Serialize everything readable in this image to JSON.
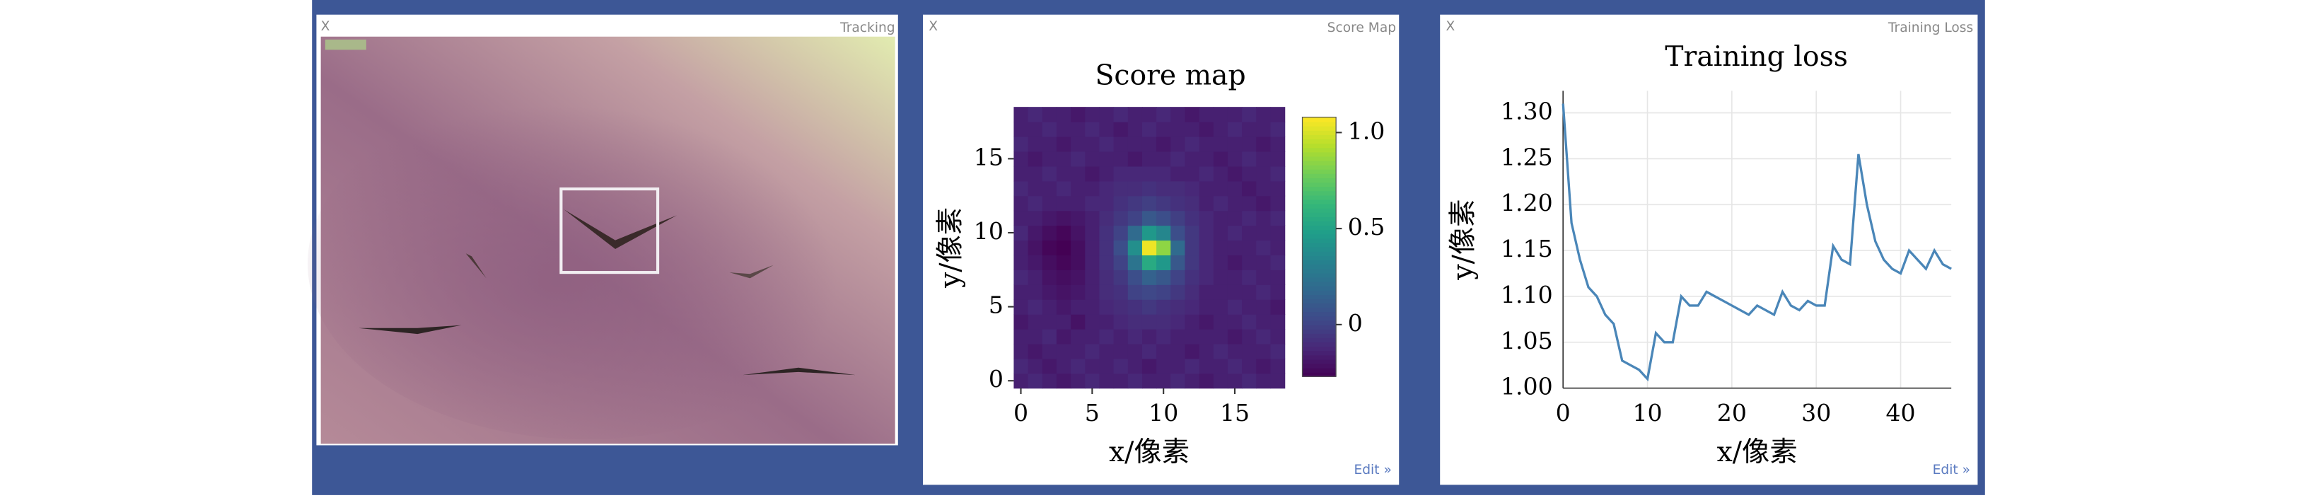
{
  "panels": [
    {
      "title": "Tracking",
      "close": "X"
    },
    {
      "title": "Score Map",
      "close": "X",
      "edit": "Edit »"
    },
    {
      "title": "Training Loss",
      "close": "X",
      "edit": "Edit »"
    }
  ],
  "chart_data": [
    {
      "type": "heatmap",
      "title": "Score map",
      "xlabel": "x/像素",
      "ylabel": "y/像素",
      "x": [
        0,
        1,
        2,
        3,
        4,
        5,
        6,
        7,
        8,
        9,
        10,
        11,
        12,
        13,
        14,
        15,
        16,
        17,
        18
      ],
      "y": [
        0,
        1,
        2,
        3,
        4,
        5,
        6,
        7,
        8,
        9,
        10,
        11,
        12,
        13,
        14,
        15,
        16,
        17,
        18
      ],
      "xlim": [
        -0.5,
        18.5
      ],
      "ylim": [
        -0.5,
        18.5
      ],
      "xticks": [
        0,
        5,
        10,
        15
      ],
      "yticks": [
        0,
        5,
        10,
        15
      ],
      "colormap": "viridis",
      "clim": [
        -0.27,
        1.08
      ],
      "cticks": [
        0,
        0.5,
        {
          "value": 1,
          "label": "1.0"
        }
      ],
      "z": [
        [
          -0.15,
          -0.12,
          -0.15,
          -0.18,
          -0.15,
          -0.12,
          -0.15,
          -0.15,
          -0.12,
          -0.15,
          -0.15,
          -0.12,
          -0.15,
          -0.18,
          -0.15,
          -0.15,
          -0.12,
          -0.15,
          -0.15
        ],
        [
          -0.12,
          -0.15,
          -0.18,
          -0.15,
          -0.12,
          -0.15,
          -0.15,
          -0.12,
          -0.15,
          -0.18,
          -0.15,
          -0.15,
          -0.12,
          -0.15,
          -0.15,
          -0.12,
          -0.15,
          -0.18,
          -0.15
        ],
        [
          -0.15,
          -0.18,
          -0.15,
          -0.15,
          -0.15,
          -0.12,
          -0.15,
          -0.15,
          -0.15,
          -0.12,
          -0.15,
          -0.15,
          -0.18,
          -0.15,
          -0.12,
          -0.15,
          -0.15,
          -0.15,
          -0.12
        ],
        [
          -0.15,
          -0.15,
          -0.12,
          -0.18,
          -0.15,
          -0.15,
          -0.12,
          -0.15,
          -0.12,
          -0.15,
          -0.12,
          -0.15,
          -0.15,
          -0.15,
          -0.15,
          -0.18,
          -0.15,
          -0.12,
          -0.15
        ],
        [
          -0.18,
          -0.15,
          -0.15,
          -0.15,
          -0.2,
          -0.15,
          -0.15,
          -0.12,
          -0.1,
          -0.1,
          -0.1,
          -0.12,
          -0.15,
          -0.18,
          -0.15,
          -0.15,
          -0.12,
          -0.15,
          -0.15
        ],
        [
          -0.15,
          -0.12,
          -0.15,
          -0.18,
          -0.15,
          -0.15,
          -0.12,
          -0.1,
          -0.08,
          -0.05,
          -0.08,
          -0.1,
          -0.12,
          -0.15,
          -0.15,
          -0.12,
          -0.15,
          -0.15,
          -0.18
        ],
        [
          -0.15,
          -0.15,
          -0.18,
          -0.2,
          -0.18,
          -0.15,
          -0.1,
          -0.08,
          0.0,
          0.02,
          0.0,
          -0.05,
          -0.1,
          -0.15,
          -0.15,
          -0.15,
          -0.15,
          -0.12,
          -0.15
        ],
        [
          -0.12,
          -0.15,
          -0.2,
          -0.22,
          -0.2,
          -0.15,
          -0.1,
          -0.05,
          0.05,
          0.15,
          0.1,
          0.0,
          -0.08,
          -0.12,
          -0.15,
          -0.15,
          -0.12,
          -0.15,
          -0.15
        ],
        [
          -0.15,
          -0.18,
          -0.22,
          -0.25,
          -0.22,
          -0.15,
          -0.08,
          0.0,
          0.25,
          0.55,
          0.45,
          0.1,
          -0.05,
          -0.12,
          -0.15,
          -0.18,
          -0.15,
          -0.15,
          -0.12
        ],
        [
          -0.15,
          -0.2,
          -0.25,
          -0.27,
          -0.22,
          -0.15,
          -0.08,
          0.05,
          0.4,
          1.05,
          0.85,
          0.2,
          -0.05,
          -0.12,
          -0.15,
          -0.15,
          -0.15,
          -0.12,
          -0.15
        ],
        [
          -0.12,
          -0.18,
          -0.22,
          -0.25,
          -0.2,
          -0.15,
          -0.08,
          0.0,
          0.2,
          0.45,
          0.35,
          0.05,
          -0.05,
          -0.12,
          -0.15,
          -0.12,
          -0.15,
          -0.15,
          -0.15
        ],
        [
          -0.15,
          -0.15,
          -0.18,
          -0.2,
          -0.18,
          -0.15,
          -0.1,
          -0.05,
          0.0,
          0.1,
          0.05,
          -0.02,
          -0.08,
          -0.12,
          -0.15,
          -0.15,
          -0.12,
          -0.15,
          -0.12
        ],
        [
          -0.15,
          -0.12,
          -0.15,
          -0.15,
          -0.15,
          -0.12,
          -0.12,
          -0.08,
          -0.05,
          -0.02,
          -0.05,
          -0.08,
          -0.1,
          -0.15,
          -0.12,
          -0.15,
          -0.15,
          -0.18,
          -0.15
        ],
        [
          -0.12,
          -0.15,
          -0.15,
          -0.12,
          -0.15,
          -0.15,
          -0.12,
          -0.1,
          -0.1,
          -0.08,
          -0.1,
          -0.1,
          -0.12,
          -0.15,
          -0.15,
          -0.15,
          -0.18,
          -0.15,
          -0.15
        ],
        [
          -0.15,
          -0.15,
          -0.12,
          -0.15,
          -0.15,
          -0.18,
          -0.15,
          -0.12,
          -0.12,
          -0.12,
          -0.12,
          -0.15,
          -0.15,
          -0.12,
          -0.15,
          -0.18,
          -0.15,
          -0.15,
          -0.12
        ],
        [
          -0.15,
          -0.18,
          -0.15,
          -0.15,
          -0.12,
          -0.15,
          -0.15,
          -0.15,
          -0.18,
          -0.15,
          -0.15,
          -0.12,
          -0.15,
          -0.15,
          -0.18,
          -0.15,
          -0.12,
          -0.15,
          -0.15
        ],
        [
          -0.12,
          -0.15,
          -0.15,
          -0.18,
          -0.15,
          -0.15,
          -0.12,
          -0.15,
          -0.15,
          -0.15,
          -0.18,
          -0.15,
          -0.12,
          -0.15,
          -0.15,
          -0.15,
          -0.15,
          -0.18,
          -0.15
        ],
        [
          -0.15,
          -0.15,
          -0.12,
          -0.15,
          -0.15,
          -0.12,
          -0.15,
          -0.18,
          -0.15,
          -0.12,
          -0.15,
          -0.15,
          -0.15,
          -0.18,
          -0.15,
          -0.12,
          -0.15,
          -0.15,
          -0.12
        ],
        [
          -0.15,
          -0.12,
          -0.15,
          -0.15,
          -0.18,
          -0.15,
          -0.15,
          -0.12,
          -0.15,
          -0.15,
          -0.12,
          -0.15,
          -0.18,
          -0.15,
          -0.15,
          -0.15,
          -0.12,
          -0.15,
          -0.15
        ]
      ]
    },
    {
      "type": "line",
      "title": "Training loss",
      "xlabel": "x/像素",
      "ylabel": "y/像素",
      "color": "#4a86b8",
      "grid": true,
      "xlim": [
        0,
        46
      ],
      "ylim": [
        1.0,
        1.324
      ],
      "xticks": [
        0,
        10,
        20,
        30,
        40
      ],
      "yticks": [
        {
          "value": 1,
          "label": "1.00"
        },
        1.05,
        {
          "value": 1.1,
          "label": "1.10"
        },
        1.15,
        {
          "value": 1.2,
          "label": "1.20"
        },
        1.25,
        {
          "value": 1.3,
          "label": "1.30"
        }
      ],
      "x": [
        0,
        1,
        2,
        3,
        4,
        5,
        6,
        7,
        8,
        9,
        10,
        11,
        12,
        13,
        14,
        15,
        16,
        17,
        18,
        19,
        20,
        21,
        22,
        23,
        24,
        25,
        26,
        27,
        28,
        29,
        30,
        31,
        32,
        33,
        34,
        35,
        36,
        37,
        38,
        39,
        40,
        41,
        42,
        43,
        44,
        45,
        46
      ],
      "values": [
        1.31,
        1.18,
        1.14,
        1.11,
        1.1,
        1.08,
        1.07,
        1.03,
        1.025,
        1.02,
        1.01,
        1.06,
        1.05,
        1.05,
        1.1,
        1.09,
        1.09,
        1.105,
        1.1,
        1.095,
        1.09,
        1.085,
        1.08,
        1.09,
        1.085,
        1.08,
        1.105,
        1.09,
        1.085,
        1.095,
        1.09,
        1.09,
        1.155,
        1.14,
        1.135,
        1.255,
        1.2,
        1.16,
        1.14,
        1.13,
        1.125,
        1.15,
        1.14,
        1.13,
        1.15,
        1.135,
        1.13
      ]
    }
  ]
}
